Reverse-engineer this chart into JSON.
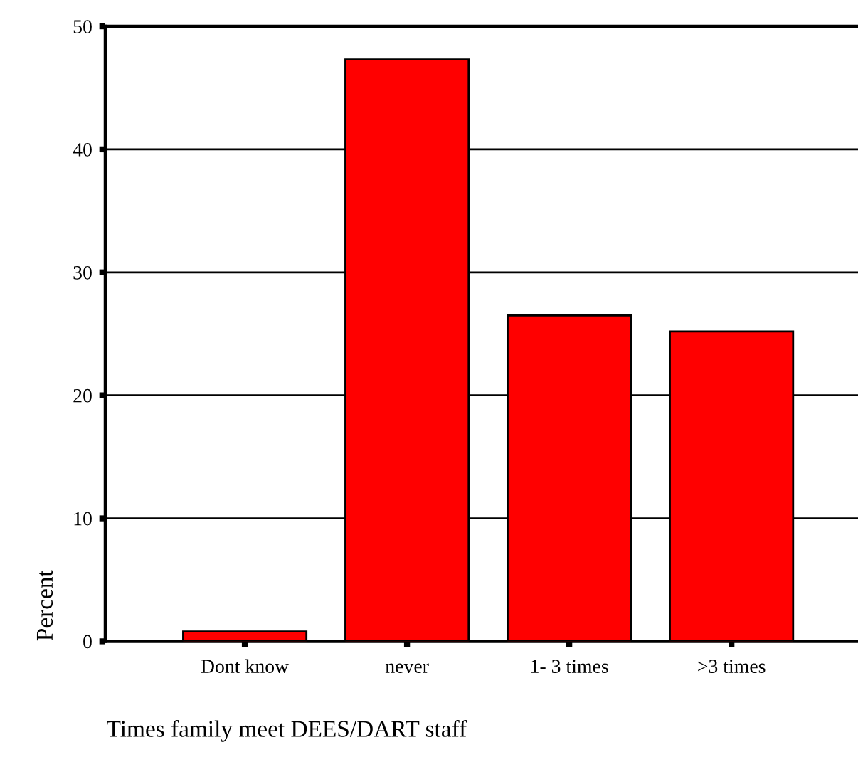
{
  "chart_data": {
    "type": "bar",
    "xlabel": "Times family meet DEES/DART staff",
    "ylabel": "Percent",
    "categories": [
      "Dont know",
      "never",
      "1- 3 times",
      ">3 times"
    ],
    "values": [
      0.8,
      47.3,
      26.5,
      25.2
    ],
    "color": "#ff0000",
    "ylim": [
      0,
      50
    ],
    "yticks": [
      0,
      10,
      20,
      30,
      40,
      50
    ],
    "grid": "y"
  }
}
